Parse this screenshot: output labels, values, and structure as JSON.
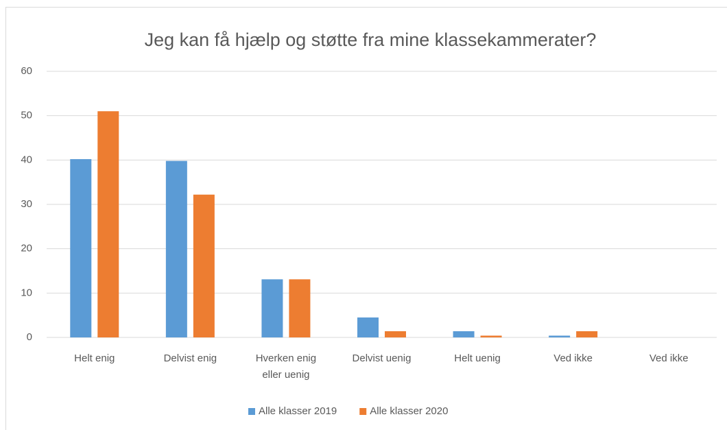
{
  "chart_data": {
    "type": "bar",
    "title": "Jeg kan få hjælp og støtte fra mine klassekammerater?",
    "categories": [
      "Helt enig",
      "Delvist enig",
      "Hverken enig eller uenig",
      "Delvist uenig",
      "Helt uenig",
      "Ved ikke",
      "Ved ikke"
    ],
    "series": [
      {
        "name": "Alle klasser 2019",
        "color": "#5b9bd5",
        "values": [
          40.2,
          39.8,
          13.1,
          4.5,
          1.4,
          0.4,
          0
        ]
      },
      {
        "name": "Alle klasser 2020",
        "color": "#ed7d31",
        "values": [
          51,
          32.2,
          13.1,
          1.4,
          0.4,
          1.4,
          0
        ]
      }
    ],
    "ylim": [
      0,
      60
    ],
    "yticks": [
      0,
      10,
      20,
      30,
      40,
      50,
      60
    ],
    "grid": true,
    "legend": "bottom"
  }
}
